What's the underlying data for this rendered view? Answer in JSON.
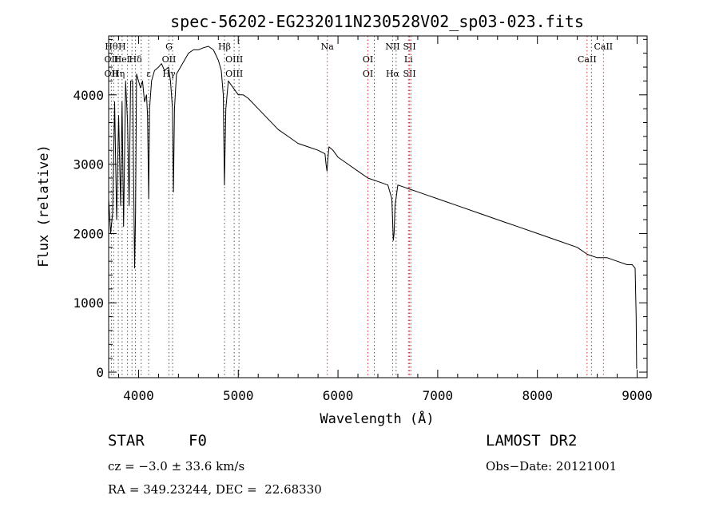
{
  "chart_data": {
    "type": "line",
    "title": "spec-56202-EG232011N230528V02_sp03-023.fits",
    "xlabel": "Wavelength (Å)",
    "ylabel": "Flux (relative)",
    "xlim": [
      3700,
      9100
    ],
    "ylim": [
      -80,
      4850
    ],
    "x_ticks": [
      4000,
      5000,
      6000,
      7000,
      8000,
      9000
    ],
    "y_ticks": [
      0,
      1000,
      2000,
      3000,
      4000
    ],
    "grid": false,
    "series": [
      {
        "x": [
          3700,
          3720,
          3740,
          3760,
          3780,
          3800,
          3820,
          3835,
          3850,
          3870,
          3890,
          3905,
          3920,
          3940,
          3960,
          3970,
          3980,
          4000,
          4020,
          4040,
          4060,
          4080,
          4090,
          4101,
          4110,
          4130,
          4160,
          4200,
          4230,
          4260,
          4300,
          4320,
          4340,
          4350,
          4360,
          4380,
          4420,
          4460,
          4500,
          4550,
          4600,
          4650,
          4700,
          4750,
          4800,
          4830,
          4850,
          4861,
          4875,
          4900,
          4950,
          5000,
          5050,
          5100,
          5200,
          5300,
          5400,
          5500,
          5600,
          5700,
          5800,
          5870,
          5880,
          5890,
          5900,
          5910,
          5950,
          6000,
          6100,
          6200,
          6300,
          6400,
          6500,
          6540,
          6555,
          6563,
          6572,
          6600,
          6700,
          6800,
          6900,
          7000,
          7200,
          7400,
          7600,
          7800,
          8000,
          8200,
          8400,
          8500,
          8600,
          8700,
          8800,
          8900,
          8950,
          8980,
          8990,
          8995
        ],
        "y": [
          2500,
          2000,
          2300,
          3900,
          2200,
          3700,
          2400,
          3900,
          2100,
          4200,
          3600,
          2400,
          4200,
          4200,
          1500,
          2300,
          4300,
          4200,
          4100,
          4200,
          3900,
          4000,
          3700,
          2500,
          3800,
          4200,
          4350,
          4400,
          4450,
          4350,
          4400,
          4200,
          3800,
          2600,
          3800,
          4300,
          4400,
          4500,
          4600,
          4650,
          4650,
          4680,
          4700,
          4650,
          4500,
          4350,
          4000,
          2700,
          3800,
          4200,
          4100,
          4000,
          4000,
          3950,
          3800,
          3650,
          3500,
          3400,
          3300,
          3250,
          3200,
          3150,
          3000,
          2900,
          3100,
          3250,
          3200,
          3100,
          3000,
          2900,
          2800,
          2750,
          2700,
          2500,
          1900,
          2000,
          2400,
          2700,
          2650,
          2600,
          2550,
          2500,
          2400,
          2300,
          2200,
          2100,
          2000,
          1900,
          1800,
          1700,
          1650,
          1650,
          1600,
          1550,
          1550,
          1500,
          800,
          50
        ]
      }
    ],
    "line_markers": [
      {
        "wavelength": 3727,
        "labels": [
          "Hθ",
          "OII",
          "OII"
        ]
      },
      {
        "wavelength": 3750,
        "labels": [
          ""
        ]
      },
      {
        "wavelength": 3797,
        "labels": [
          "",
          "",
          "Hη"
        ]
      },
      {
        "wavelength": 3835,
        "labels": [
          "H",
          "HeI",
          ""
        ]
      },
      {
        "wavelength": 3889,
        "labels": [
          ""
        ]
      },
      {
        "wavelength": 3934,
        "labels": [
          ""
        ]
      },
      {
        "wavelength": 3969,
        "labels": [
          "",
          "Hδ",
          ""
        ]
      },
      {
        "wavelength": 4026,
        "labels": [
          ""
        ]
      },
      {
        "wavelength": 4101,
        "labels": [
          "",
          "",
          "ε"
        ]
      },
      {
        "wavelength": 4305,
        "labels": [
          "G",
          "OII",
          "Hγ"
        ]
      },
      {
        "wavelength": 4341,
        "labels": [
          ""
        ]
      },
      {
        "wavelength": 4862,
        "labels": [
          "Hβ",
          "",
          ""
        ]
      },
      {
        "wavelength": 4959,
        "labels": [
          "",
          "OIII",
          "OIII"
        ]
      },
      {
        "wavelength": 5007,
        "labels": [
          ""
        ]
      },
      {
        "wavelength": 5893,
        "labels": [
          "Na",
          "",
          ""
        ]
      },
      {
        "wavelength": 6300,
        "labels": [
          "",
          "OI",
          "OI"
        ]
      },
      {
        "wavelength": 6364,
        "labels": [
          ""
        ]
      },
      {
        "wavelength": 6548,
        "labels": [
          "NII",
          "",
          "Hα"
        ]
      },
      {
        "wavelength": 6583,
        "labels": [
          ""
        ]
      },
      {
        "wavelength": 6707,
        "labels": [
          "",
          "Li",
          ""
        ]
      },
      {
        "wavelength": 6717,
        "labels": [
          "SII",
          "",
          "SII"
        ]
      },
      {
        "wavelength": 6731,
        "labels": [
          ""
        ]
      },
      {
        "wavelength": 8498,
        "labels": [
          "",
          "CaII",
          ""
        ]
      },
      {
        "wavelength": 8542,
        "labels": [
          ""
        ]
      },
      {
        "wavelength": 8662,
        "labels": [
          "CaII",
          "",
          ""
        ]
      }
    ],
    "marker_colors": {
      "emission": "#e03030",
      "absorption": "#555555"
    }
  },
  "info": {
    "class_label": "STAR",
    "subclass": "F0",
    "survey": "LAMOST DR2",
    "cz_line": "cz = −3.0 ± 33.6 km/s",
    "obs_date_line": "Obs−Date: 20121001",
    "coords_line": "RA = 349.23244, DEC =  22.68330"
  }
}
